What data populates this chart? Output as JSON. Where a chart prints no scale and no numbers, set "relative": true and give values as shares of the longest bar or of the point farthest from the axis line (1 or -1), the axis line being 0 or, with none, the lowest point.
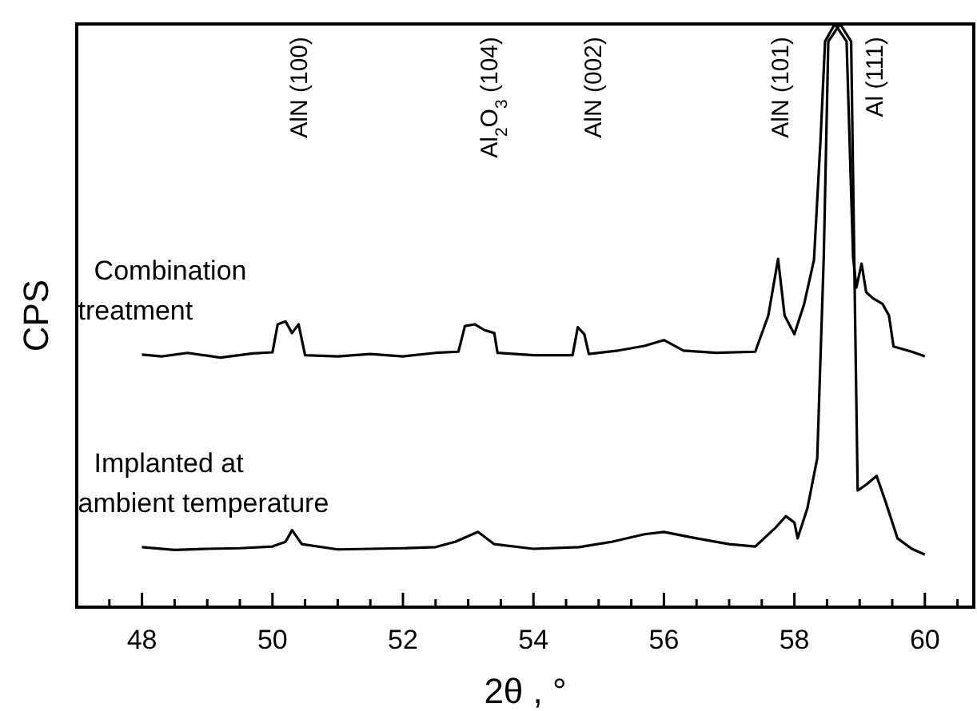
{
  "chart_data": {
    "type": "line",
    "relative": true,
    "xlabel": "2θ , °",
    "ylabel": "CPS",
    "xlim": [
      47,
      60.75
    ],
    "xticks": [
      {
        "value": 47.5,
        "label": null
      },
      48,
      {
        "value": 48.5,
        "label": null
      },
      {
        "value": 49,
        "label": null
      },
      {
        "value": 49.5,
        "label": null
      },
      50,
      {
        "value": 50.5,
        "label": null
      },
      {
        "value": 51,
        "label": null
      },
      {
        "value": 51.5,
        "label": null
      },
      52,
      {
        "value": 52.5,
        "label": null
      },
      {
        "value": 53,
        "label": null
      },
      {
        "value": 53.5,
        "label": null
      },
      54,
      {
        "value": 54.5,
        "label": null
      },
      {
        "value": 55,
        "label": null
      },
      {
        "value": 55.5,
        "label": null
      },
      56,
      {
        "value": 56.5,
        "label": null
      },
      {
        "value": 57,
        "label": null
      },
      {
        "value": 57.5,
        "label": null
      },
      58,
      {
        "value": 58.5,
        "label": null
      },
      {
        "value": 59,
        "label": null
      },
      {
        "value": 59.5,
        "label": null
      },
      60,
      {
        "value": 60.5,
        "label": null
      }
    ],
    "grid": false,
    "legend": false,
    "marker": "none",
    "line_style": "solid",
    "annotations": [
      "AlN (100)",
      "Al$_{2}$O$_{3}$ (104)",
      "AlN (002)",
      "AlN (101)",
      "Al (111)"
    ],
    "series": [
      {
        "name": "Combination\ntreatment",
        "color": "#000000",
        "x": [
          48.0,
          48.3,
          48.7,
          49.2,
          49.7,
          50.0,
          50.08,
          50.2,
          50.3,
          50.4,
          50.5,
          51.0,
          51.5,
          52.0,
          52.5,
          52.85,
          52.95,
          53.1,
          53.25,
          53.4,
          53.45,
          54.0,
          54.6,
          54.68,
          54.78,
          54.85,
          55.3,
          55.7,
          56.0,
          56.3,
          56.8,
          57.4,
          57.6,
          57.75,
          57.85,
          58.0,
          58.15,
          58.3,
          58.4,
          58.47,
          58.62,
          58.8,
          58.9,
          58.95,
          59.03,
          59.1,
          59.2,
          59.35,
          59.45,
          59.52,
          59.8,
          60.0
        ],
        "values": [
          0.433,
          0.43,
          0.436,
          0.428,
          0.435,
          0.437,
          0.485,
          0.49,
          0.47,
          0.485,
          0.432,
          0.43,
          0.434,
          0.43,
          0.436,
          0.438,
          0.482,
          0.485,
          0.475,
          0.47,
          0.436,
          0.432,
          0.432,
          0.48,
          0.468,
          0.434,
          0.44,
          0.448,
          0.458,
          0.44,
          0.436,
          0.438,
          0.5,
          0.597,
          0.5,
          0.468,
          0.52,
          0.595,
          0.8,
          0.97,
          1,
          0.97,
          0.6,
          0.548,
          0.589,
          0.54,
          0.53,
          0.52,
          0.5,
          0.447,
          0.438,
          0.43
        ]
      },
      {
        "name": "Implanted at\nambient temperature",
        "color": "#000000",
        "x": [
          48.0,
          48.5,
          49.0,
          49.5,
          50.0,
          50.2,
          50.3,
          50.45,
          51.0,
          51.5,
          52.0,
          52.5,
          52.8,
          53.15,
          53.4,
          54.0,
          54.7,
          55.2,
          55.7,
          56.0,
          56.5,
          57.0,
          57.4,
          57.7,
          57.87,
          58.0,
          58.05,
          58.2,
          58.35,
          58.45,
          58.52,
          58.7,
          58.87,
          58.93,
          58.97,
          59.1,
          59.26,
          59.4,
          59.58,
          59.8,
          60.0
        ],
        "values": [
          0.103,
          0.098,
          0.1,
          0.101,
          0.104,
          0.112,
          0.132,
          0.108,
          0.099,
          0.1,
          0.101,
          0.103,
          0.112,
          0.129,
          0.108,
          0.1,
          0.103,
          0.112,
          0.125,
          0.129,
          0.118,
          0.108,
          0.104,
          0.135,
          0.156,
          0.145,
          0.118,
          0.17,
          0.255,
          0.6,
          0.97,
          1,
          0.97,
          0.5,
          0.2,
          0.21,
          0.225,
          0.18,
          0.118,
          0.1,
          0.09
        ]
      }
    ]
  }
}
